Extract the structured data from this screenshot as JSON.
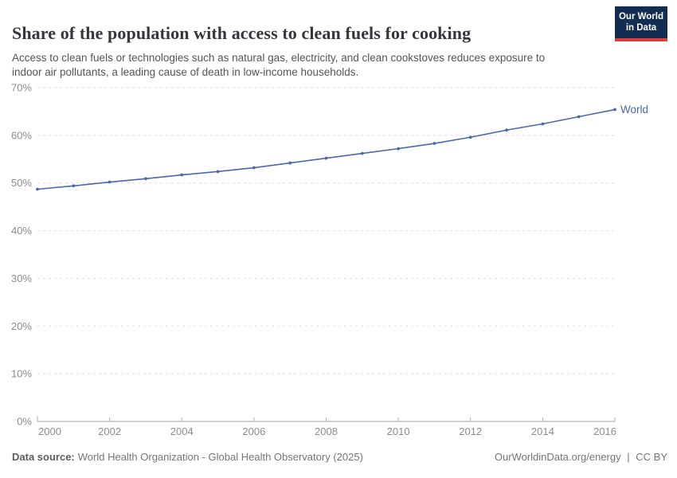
{
  "logo": {
    "line1": "Our World",
    "line2": "in Data"
  },
  "chart_data": {
    "type": "line",
    "title": "Share of the population with access to clean fuels for cooking",
    "subtitle": "Access to clean fuels or technologies such as natural gas, electricity, and clean cookstoves reduces exposure to indoor air pollutants, a leading cause of death in low-income households.",
    "x": [
      2000,
      2001,
      2002,
      2003,
      2004,
      2005,
      2006,
      2007,
      2008,
      2009,
      2010,
      2011,
      2012,
      2013,
      2014,
      2015,
      2016
    ],
    "series": [
      {
        "name": "World",
        "color": "#4a68ab",
        "values": [
          48.7,
          49.4,
          50.2,
          50.9,
          51.7,
          52.4,
          53.2,
          54.2,
          55.2,
          56.2,
          57.2,
          58.3,
          59.6,
          61.1,
          62.4,
          63.9,
          65.4
        ]
      }
    ],
    "ylim": [
      0,
      70
    ],
    "ytick_step": 10,
    "ytick_suffix": "%",
    "xticks": [
      2000,
      2002,
      2004,
      2006,
      2008,
      2010,
      2012,
      2014,
      2016
    ],
    "grid": "dashed-horizontal",
    "legend_position": "end-of-line",
    "colors": {
      "gridline": "#dedede",
      "axis_line": "#a6a6a6",
      "tick_mark": "#b3b3b3",
      "tick_label": "#8c8c8c"
    }
  },
  "footer": {
    "source_label": "Data source:",
    "source_text": "World Health Organization - Global Health Observatory (2025)",
    "link_text": "OurWorldinData.org/energy",
    "separator": "|",
    "license_text": "CC BY"
  }
}
